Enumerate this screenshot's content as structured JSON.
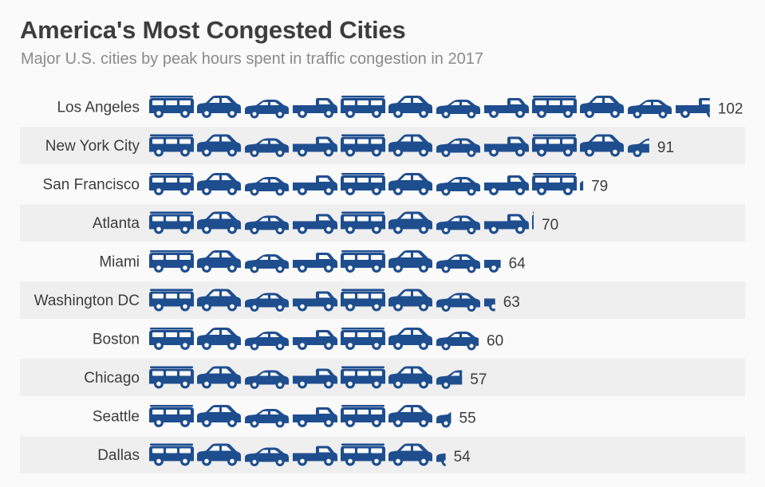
{
  "chart_data": {
    "type": "bar",
    "title": "America's Most Congested Cities",
    "subtitle": "Major U.S. cities by peak hours spent in traffic congestion in 2017",
    "categories": [
      "Los Angeles",
      "New York City",
      "San Francisco",
      "Atlanta",
      "Miami",
      "Washington DC",
      "Boston",
      "Chicago",
      "Seattle",
      "Dallas"
    ],
    "values": [
      102,
      91,
      79,
      70,
      64,
      63,
      60,
      57,
      55,
      54
    ],
    "xlim": [
      0,
      102
    ],
    "orientation": "horizontal",
    "marker": "car-pictogram",
    "bar_color": "#1f4e8f",
    "alt_row_color": "#efefef",
    "grid": false
  }
}
